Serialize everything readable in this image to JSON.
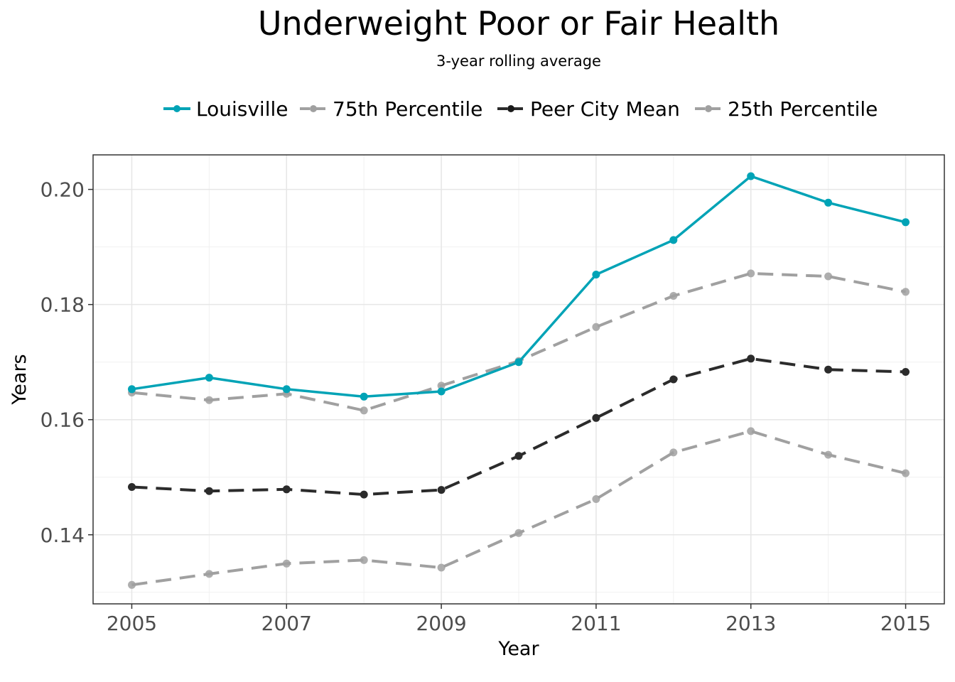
{
  "chart_data": {
    "type": "line",
    "title": "Underweight Poor or Fair Health",
    "subtitle": "3-year rolling average",
    "xlabel": "Year",
    "ylabel": "Years",
    "xlim": [
      2004.5,
      2015.5
    ],
    "ylim": [
      0.128,
      0.206
    ],
    "x_ticks": [
      2005,
      2007,
      2009,
      2011,
      2013,
      2015
    ],
    "y_ticks": [
      0.14,
      0.16,
      0.18,
      0.2
    ],
    "y_tick_labels": [
      "0.14",
      "0.16",
      "0.18",
      "0.20"
    ],
    "grid": true,
    "legend_position": "top",
    "x": [
      2005,
      2006,
      2007,
      2008,
      2009,
      2010,
      2011,
      2012,
      2013,
      2014,
      2015
    ],
    "series": [
      {
        "name": "Louisville",
        "color": "#00a3b6",
        "dashed": false,
        "values": [
          0.1653,
          0.1673,
          0.1653,
          0.164,
          0.1649,
          0.17,
          0.1852,
          0.1912,
          0.2023,
          0.1977,
          0.1943
        ]
      },
      {
        "name": "75th Percentile",
        "color": "#a0a0a0",
        "dashed": true,
        "values": [
          0.1647,
          0.1634,
          0.1645,
          0.1616,
          0.1659,
          0.1702,
          0.1761,
          0.1815,
          0.1854,
          0.1849,
          0.1822
        ]
      },
      {
        "name": "Peer City Mean",
        "color": "#2b2b2b",
        "dashed": true,
        "values": [
          0.1483,
          0.1476,
          0.1479,
          0.147,
          0.1478,
          0.1537,
          0.1603,
          0.167,
          0.1706,
          0.1687,
          0.1683
        ]
      },
      {
        "name": "25th Percentile",
        "color": "#a0a0a0",
        "dashed": true,
        "values": [
          0.1313,
          0.1332,
          0.135,
          0.1356,
          0.1343,
          0.1403,
          0.1462,
          0.1543,
          0.158,
          0.1539,
          0.1507
        ]
      }
    ]
  }
}
